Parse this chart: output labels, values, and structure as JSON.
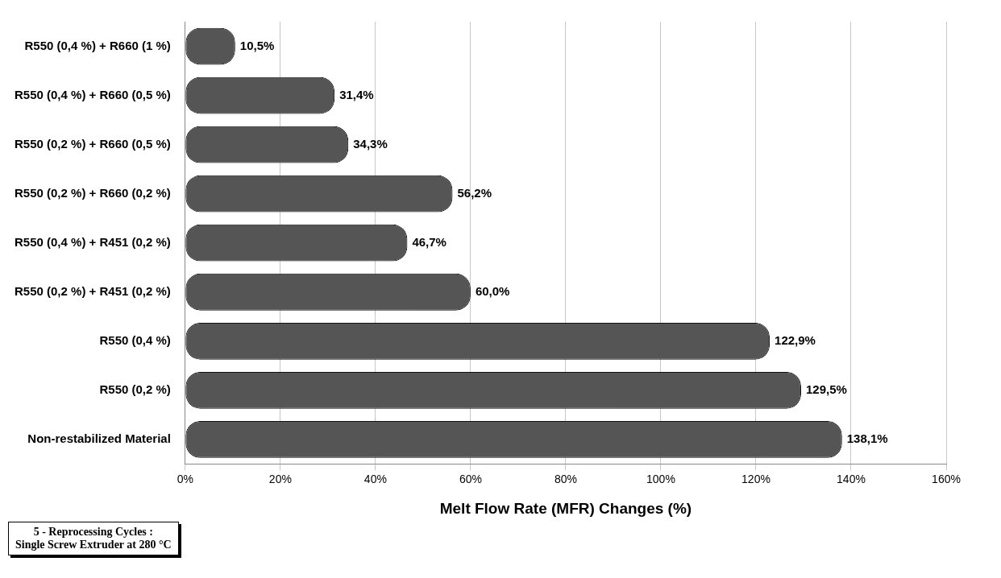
{
  "chart_data": {
    "type": "bar",
    "orientation": "horizontal",
    "categories": [
      "R550 (0,4 %) + R660 (1 %)",
      "R550 (0,4 %) + R660 (0,5 %)",
      "R550 (0,2 %) + R660 (0,5 %)",
      "R550 (0,2 %) + R660 (0,2 %)",
      "R550 (0,4 %) + R451 (0,2 %)",
      "R550 (0,2 %) + R451 (0,2 %)",
      "R550 (0,4 %)",
      "R550 (0,2 %)",
      "Non-restabilized Material"
    ],
    "values": [
      10.5,
      31.4,
      34.3,
      56.2,
      46.7,
      60.0,
      122.9,
      129.5,
      138.1
    ],
    "value_labels": [
      "10,5%",
      "31,4%",
      "34,3%",
      "56,2%",
      "46,7%",
      "60,0%",
      "122,9%",
      "129,5%",
      "138,1%"
    ],
    "color": "#555555",
    "xlabel": "Melt Flow Rate (MFR) Changes (%)",
    "xlim": [
      0,
      160
    ],
    "xticks": [
      {
        "value": 0,
        "label": "0%"
      },
      {
        "value": 20,
        "label": "20%"
      },
      {
        "value": 40,
        "label": "40%"
      },
      {
        "value": 60,
        "label": "60%"
      },
      {
        "value": 80,
        "label": "80%"
      },
      {
        "value": 100,
        "label": "100%"
      },
      {
        "value": 120,
        "label": "120%"
      },
      {
        "value": 140,
        "label": "140%"
      },
      {
        "value": 160,
        "label": "160%"
      }
    ],
    "grid": "x",
    "legend": false,
    "annotations": [
      "5 - Reprocessing Cycles :",
      "Single Screw Extruder at 280 °C"
    ]
  }
}
